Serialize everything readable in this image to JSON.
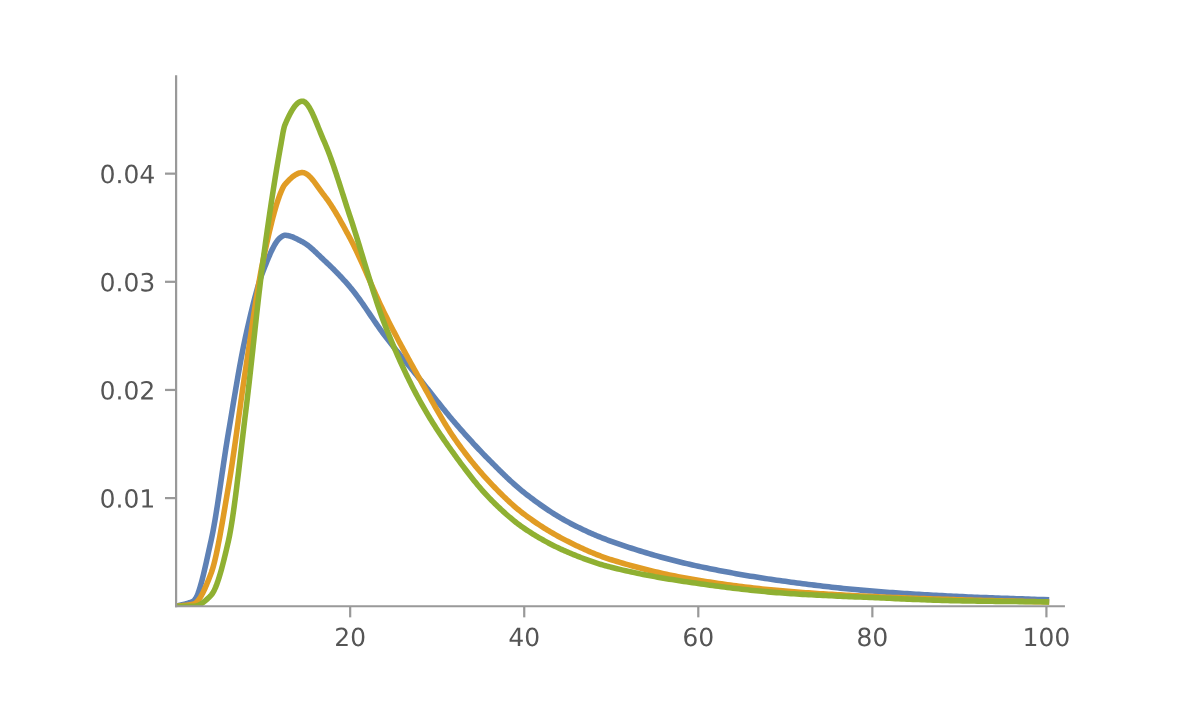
{
  "chart_data": {
    "type": "line",
    "x": [
      0,
      2,
      4,
      6,
      8,
      10,
      12,
      12.5,
      14.5,
      17,
      20,
      24,
      28,
      32,
      36,
      40,
      45,
      50,
      60,
      70,
      80,
      90,
      100
    ],
    "series": [
      {
        "color": "#5e81b5",
        "values": [
          0,
          0.0005,
          0.006,
          0.016,
          0.025,
          0.031,
          0.0341,
          0.0343,
          0.0337,
          0.032,
          0.0295,
          0.025,
          0.021,
          0.017,
          0.0135,
          0.0105,
          0.0078,
          0.006,
          0.0037,
          0.0023,
          0.0014,
          0.0009,
          0.0006
        ]
      },
      {
        "color": "#e19c24",
        "values": [
          0,
          0.0002,
          0.003,
          0.011,
          0.022,
          0.032,
          0.0382,
          0.039,
          0.0401,
          0.038,
          0.034,
          0.027,
          0.021,
          0.0155,
          0.0115,
          0.0085,
          0.006,
          0.0043,
          0.0024,
          0.0014,
          0.0009,
          0.0006,
          0.0004
        ]
      },
      {
        "color": "#8fb032",
        "values": [
          0,
          0,
          0.001,
          0.006,
          0.018,
          0.032,
          0.0425,
          0.0445,
          0.0467,
          0.043,
          0.036,
          0.026,
          0.019,
          0.014,
          0.01,
          0.0072,
          0.005,
          0.0036,
          0.0021,
          0.0012,
          0.0008,
          0.0005,
          0.0004
        ]
      }
    ],
    "xlim": [
      0,
      102
    ],
    "ylim": [
      0,
      0.049
    ],
    "xticks": [
      20,
      40,
      60,
      80,
      100
    ],
    "yticks": [
      0.01,
      0.02,
      0.03,
      0.04
    ],
    "grid": false,
    "legend": false
  }
}
